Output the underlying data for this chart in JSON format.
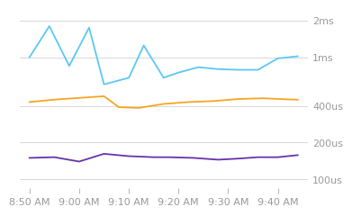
{
  "background_color": "#ffffff",
  "grid_color": "#d8d8d8",
  "ytick_labels": [
    "100us",
    "200us",
    "400us",
    "1ms",
    "2ms"
  ],
  "ytick_values": [
    100,
    200,
    400,
    1000,
    2000
  ],
  "xtick_labels": [
    "8:50 AM",
    "9:00 AM",
    "9:10 AM",
    "9:20 AM",
    "9:30 AM",
    "9:40 AM"
  ],
  "xtick_positions": [
    0,
    10,
    20,
    30,
    40,
    50
  ],
  "xlim": [
    -2,
    56
  ],
  "blue_line": {
    "color": "#5bc8f5",
    "x": [
      0,
      4,
      8,
      12,
      15,
      20,
      23,
      27,
      30,
      34,
      38,
      42,
      46,
      50,
      54
    ],
    "y": [
      1000,
      1800,
      850,
      1750,
      600,
      680,
      1250,
      680,
      750,
      830,
      800,
      790,
      790,
      980,
      1020
    ]
  },
  "orange_line": {
    "color": "#f5a623",
    "x": [
      0,
      5,
      10,
      15,
      18,
      22,
      27,
      32,
      37,
      42,
      47,
      52,
      54
    ],
    "y": [
      430,
      450,
      465,
      480,
      390,
      385,
      415,
      430,
      438,
      455,
      462,
      452,
      450
    ]
  },
  "purple_line": {
    "color": "#6633aa",
    "x": [
      0,
      5,
      10,
      15,
      20,
      25,
      28,
      33,
      38,
      42,
      46,
      50,
      54
    ],
    "y": [
      150,
      152,
      140,
      162,
      155,
      152,
      152,
      150,
      145,
      148,
      152,
      152,
      158
    ]
  },
  "line_width": 1.3,
  "tick_color": "#bbbbbb",
  "tick_label_color": "#999999",
  "tick_fontsize": 8.0
}
